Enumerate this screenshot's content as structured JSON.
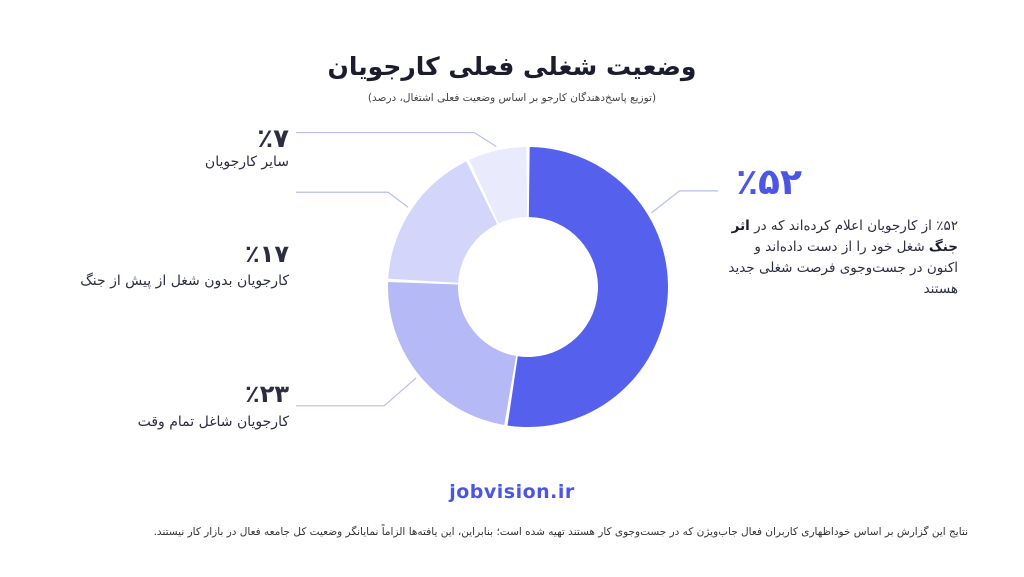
{
  "chart_data": {
    "type": "pie",
    "title": "وضعیت شغلی فعلی کارجویان",
    "subtitle": "(توزیع پاسخ‌دهندگان کارجو بر اساس وضعیت فعلی اشتغال، درصد)",
    "slices": [
      {
        "label": "از کارجویان اعلام کرده‌اند که در اثر جنگ شغل خود را از دست داده‌اند و اکنون در جست‌وجوی فرصت شغلی جدید هستند",
        "value": 52,
        "value_label": "٪۵۲",
        "color": "#5560ec"
      },
      {
        "label": "کارجویان شاغل تمام وقت",
        "value": 23,
        "value_label": "٪۲۳",
        "color": "#b5b9f5"
      },
      {
        "label": "کارجویان بدون شغل از پیش از جنگ",
        "value": 17,
        "value_label": "٪۱۷",
        "color": "#d3d6fa"
      },
      {
        "label": "سایر کارجویان",
        "value": 7,
        "value_label": "٪۷",
        "color": "#e9eafc"
      }
    ]
  },
  "annotation": {
    "big_value": "٪۵۲",
    "desc_prefix": "٪۵۲ از کارجویان اعلام کرده‌اند که در ",
    "desc_bold": "اثر جنگ",
    "desc_suffix": " شغل خود را از دست داده‌اند و اکنون در جست‌وجوی فرصت شغلی جدید هستند"
  },
  "labels": [
    {
      "pct": "٪۷",
      "text": "سایر کارجویان"
    },
    {
      "pct": "٪۱۷",
      "text": "کارجویان بدون شغل از پیش از جنگ"
    },
    {
      "pct": "٪۲۳",
      "text": "کارجویان شاغل تمام وقت"
    }
  ],
  "brand": "jobvision.ir",
  "footnote": "نتایج این گزارش بر اساس خوداظهاری کاربران فعال جاب‌ویژن که در جست‌وجوی کار هستند تهیه شده است؛ بنابراین، این یافته‌ها الزاماً نمایانگر وضعیت کل جامعه فعال در بازار کار نیستند.",
  "colors": {
    "accent": "#4b55e6",
    "leader": "#b9bdf2"
  }
}
